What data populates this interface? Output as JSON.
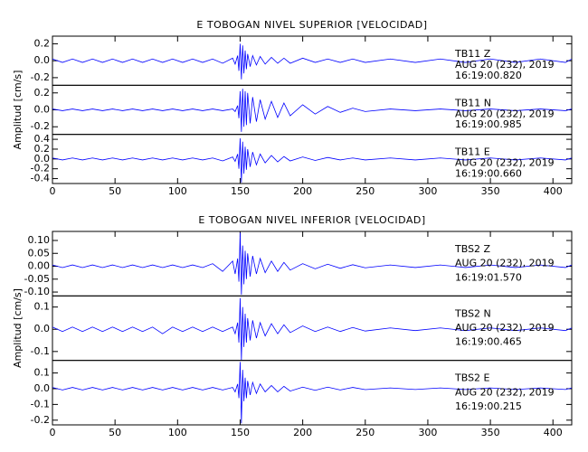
{
  "chart_data": [
    {
      "type": "line",
      "title": "E TOBOGAN NIVEL SUPERIOR [VELOCIDAD]",
      "ylabel": "Amplitud [cm/s]",
      "xlim": [
        0,
        415
      ],
      "xticks": [
        0,
        50,
        100,
        150,
        200,
        250,
        300,
        350,
        400
      ],
      "x": [
        0,
        8,
        16,
        24,
        32,
        40,
        48,
        56,
        64,
        72,
        80,
        88,
        96,
        104,
        112,
        120,
        128,
        136,
        144,
        146,
        148,
        149,
        150,
        151,
        152,
        153,
        154,
        155,
        156,
        158,
        160,
        163,
        166,
        170,
        175,
        180,
        185,
        190,
        200,
        210,
        220,
        230,
        240,
        250,
        270,
        290,
        310,
        330,
        350,
        370,
        390,
        410,
        415
      ],
      "panels": [
        {
          "station": "TB11   Z",
          "date": "AUG 20 (232), 2019",
          "time": "16:19:00.820",
          "color": "#0000ff",
          "ylim": [
            -0.29,
            0.29
          ],
          "yticks": [
            0.2,
            {
              "value": 0,
              "label": "0.0"
            },
            -0.2
          ],
          "values": [
            0.02,
            -0.02,
            0.02,
            -0.02,
            0.02,
            -0.02,
            0.02,
            -0.02,
            0.02,
            -0.02,
            0.02,
            -0.02,
            0.02,
            -0.02,
            0.02,
            -0.02,
            0.02,
            -0.03,
            0.03,
            -0.04,
            0.06,
            -0.12,
            0.2,
            -0.22,
            0.18,
            -0.15,
            0.12,
            -0.1,
            0.08,
            -0.07,
            0.06,
            -0.05,
            0.05,
            -0.04,
            0.04,
            -0.03,
            0.03,
            -0.03,
            0.03,
            -0.02,
            0.02,
            -0.02,
            0.02,
            -0.02,
            0.02,
            -0.02,
            0.02,
            -0.02,
            0.02,
            -0.02,
            0.02,
            -0.02,
            0.02
          ]
        },
        {
          "station": "TB11   N",
          "date": "AUG 20 (232), 2019",
          "time": "16:19:00.985",
          "color": "#0000ff",
          "ylim": [
            -0.29,
            0.29
          ],
          "yticks": [
            0.2,
            {
              "value": 0,
              "label": "0.0"
            },
            -0.2
          ],
          "values": [
            0.01,
            -0.01,
            0.01,
            -0.01,
            0.01,
            -0.01,
            0.01,
            -0.01,
            0.01,
            -0.01,
            0.01,
            -0.01,
            0.01,
            -0.01,
            0.01,
            -0.01,
            0.01,
            -0.01,
            0.01,
            -0.02,
            0.05,
            -0.1,
            0.22,
            -0.26,
            0.25,
            -0.2,
            0.22,
            -0.18,
            0.2,
            -0.16,
            0.15,
            -0.14,
            0.12,
            -0.11,
            0.1,
            -0.09,
            0.08,
            -0.07,
            0.06,
            -0.05,
            0.04,
            -0.03,
            0.02,
            -0.02,
            0.01,
            -0.01,
            0.01,
            -0.01,
            0.01,
            -0.01,
            0.01,
            -0.01,
            0.01
          ]
        },
        {
          "station": "TB11   E",
          "date": "AUG 20 (232), 2019",
          "time": "16:19:00.660",
          "color": "#0000ff",
          "ylim": [
            -0.5,
            0.5
          ],
          "yticks": [
            0.4,
            0.2,
            {
              "value": 0,
              "label": "0.0"
            },
            -0.2,
            -0.4
          ],
          "values": [
            0.02,
            -0.02,
            0.02,
            -0.02,
            0.02,
            -0.02,
            0.02,
            -0.02,
            0.02,
            -0.02,
            0.02,
            -0.02,
            0.02,
            -0.02,
            0.02,
            -0.02,
            0.02,
            -0.04,
            0.04,
            -0.05,
            0.1,
            -0.2,
            0.42,
            -0.48,
            0.35,
            -0.3,
            0.25,
            -0.22,
            0.2,
            -0.16,
            0.14,
            -0.12,
            0.1,
            -0.08,
            0.07,
            -0.06,
            0.05,
            -0.04,
            0.04,
            -0.03,
            0.03,
            -0.02,
            0.02,
            -0.02,
            0.02,
            -0.02,
            0.02,
            -0.02,
            0.02,
            -0.02,
            0.02,
            -0.02,
            0.02
          ]
        }
      ]
    },
    {
      "type": "line",
      "title": "E TOBOGAN NIVEL INFERIOR [VELOCIDAD]",
      "ylabel": "Amplitud [cm/s]",
      "xlim": [
        0,
        415
      ],
      "xticks": [
        0,
        50,
        100,
        150,
        200,
        250,
        300,
        350,
        400
      ],
      "x": [
        0,
        8,
        16,
        24,
        32,
        40,
        48,
        56,
        64,
        72,
        80,
        88,
        96,
        104,
        112,
        120,
        128,
        136,
        144,
        146,
        148,
        149,
        150,
        151,
        152,
        153,
        154,
        155,
        156,
        158,
        160,
        163,
        166,
        170,
        175,
        180,
        185,
        190,
        200,
        210,
        220,
        230,
        240,
        250,
        270,
        290,
        310,
        330,
        350,
        370,
        390,
        410,
        415
      ],
      "panels": [
        {
          "station": "TBS2   Z",
          "date": "AUG 20 (232), 2019",
          "time": "16:19:01.570",
          "color": "#0000ff",
          "ylim": [
            -0.115,
            0.135
          ],
          "yticks": [
            {
              "value": 0.1,
              "label": "0.10"
            },
            {
              "value": 0.05,
              "label": "0.05"
            },
            {
              "value": 0,
              "label": "0.00"
            },
            {
              "value": -0.05,
              "label": "-0.05"
            },
            {
              "value": -0.1,
              "label": "-0.10"
            }
          ],
          "values": [
            0.005,
            -0.005,
            0.005,
            -0.005,
            0.005,
            -0.005,
            0.005,
            -0.005,
            0.005,
            -0.005,
            0.005,
            -0.005,
            0.005,
            -0.005,
            0.005,
            -0.005,
            0.01,
            -0.02,
            0.02,
            -0.03,
            0.03,
            -0.06,
            0.13,
            -0.11,
            0.08,
            -0.07,
            0.06,
            -0.05,
            0.05,
            -0.04,
            0.04,
            -0.03,
            0.03,
            -0.025,
            0.02,
            -0.02,
            0.015,
            -0.015,
            0.01,
            -0.01,
            0.008,
            -0.008,
            0.006,
            -0.006,
            0.005,
            -0.005,
            0.005,
            -0.005,
            0.005,
            -0.005,
            0.005,
            -0.005,
            0.005
          ]
        },
        {
          "station": "TBS2   N",
          "date": "AUG 20 (232), 2019",
          "time": "16:19:00.465",
          "color": "#0000ff",
          "ylim": [
            -0.14,
            0.15
          ],
          "yticks": [
            0.1,
            {
              "value": 0,
              "label": "0.0"
            },
            -0.1
          ],
          "values": [
            0.01,
            -0.01,
            0.01,
            -0.01,
            0.01,
            -0.01,
            0.01,
            -0.01,
            0.01,
            -0.01,
            0.01,
            -0.02,
            0.01,
            -0.01,
            0.01,
            -0.01,
            0.01,
            -0.01,
            0.01,
            -0.02,
            0.03,
            -0.06,
            0.14,
            -0.14,
            0.1,
            -0.08,
            0.07,
            -0.06,
            0.05,
            -0.05,
            0.04,
            -0.04,
            0.03,
            -0.03,
            0.025,
            -0.02,
            0.02,
            -0.015,
            0.015,
            -0.01,
            0.01,
            -0.01,
            0.008,
            -0.008,
            0.006,
            -0.006,
            0.006,
            -0.006,
            0.006,
            -0.006,
            0.006,
            -0.006,
            0.006
          ]
        },
        {
          "station": "TBS2   E",
          "date": "AUG 20 (232), 2019",
          "time": "16:19:00.215",
          "color": "#0000ff",
          "ylim": [
            -0.23,
            0.18
          ],
          "yticks": [
            0.1,
            {
              "value": 0,
              "label": "0.0"
            },
            -0.1,
            -0.2
          ],
          "values": [
            0.008,
            -0.008,
            0.008,
            -0.008,
            0.008,
            -0.008,
            0.008,
            -0.008,
            0.008,
            -0.008,
            0.008,
            -0.008,
            0.008,
            -0.008,
            0.008,
            -0.008,
            0.008,
            -0.008,
            0.008,
            -0.02,
            0.03,
            -0.06,
            0.17,
            -0.22,
            0.12,
            -0.08,
            0.07,
            -0.06,
            0.05,
            -0.04,
            0.04,
            -0.03,
            0.03,
            -0.02,
            0.02,
            -0.02,
            0.015,
            -0.015,
            0.01,
            -0.01,
            0.01,
            -0.008,
            0.008,
            -0.006,
            0.005,
            -0.005,
            0.005,
            -0.005,
            0.005,
            -0.005,
            0.005,
            -0.005,
            0.005
          ]
        }
      ]
    }
  ]
}
